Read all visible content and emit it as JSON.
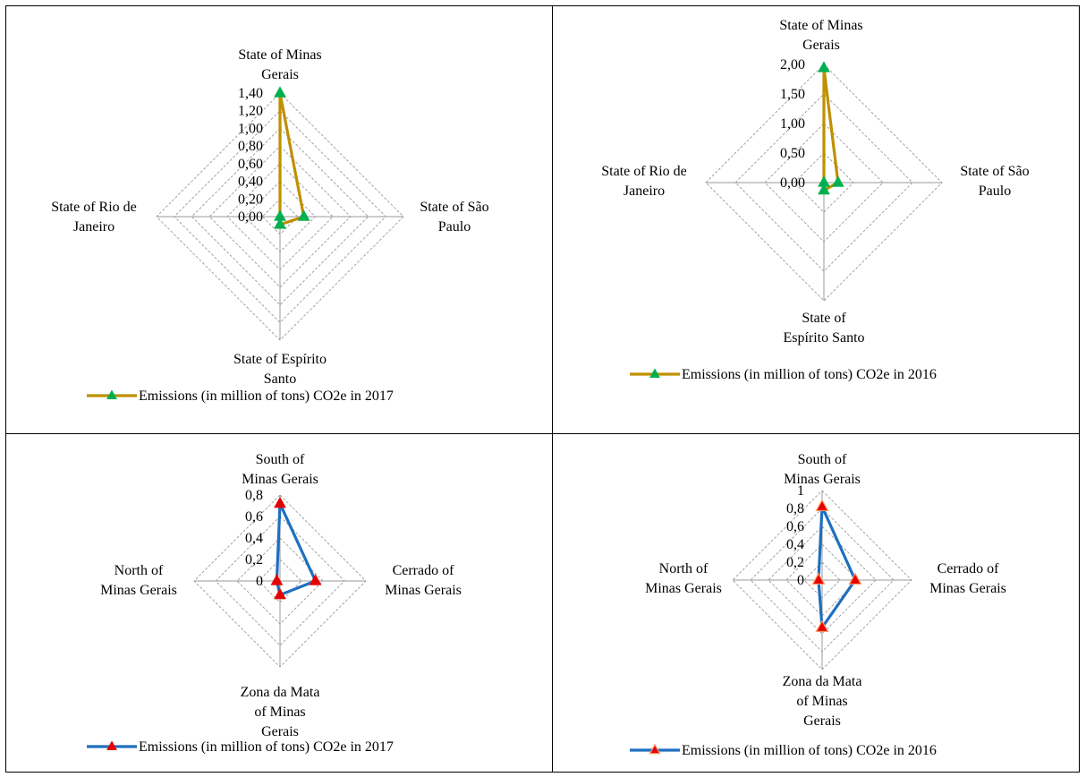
{
  "chart_data": [
    {
      "type": "radar",
      "categories": [
        [
          "State of Minas",
          "Gerais"
        ],
        [
          "State of São",
          "Paulo"
        ],
        [
          "State of Espírito",
          "Santo"
        ],
        [
          "State of Rio de",
          "Janeiro"
        ]
      ],
      "tick_labels": [
        "0,00",
        "0,20",
        "0,40",
        "0,60",
        "0,80",
        "1,00",
        "1,20",
        "1,40"
      ],
      "rmax": 1.4,
      "series": [
        {
          "name": "Emissions (in million of tons) CO2e in 2017",
          "values": [
            1.4,
            0.27,
            0.09,
            0.0
          ]
        }
      ],
      "line_color": "#bf9000",
      "marker_color": "#00b050",
      "grid": true
    },
    {
      "type": "radar",
      "categories": [
        [
          "State of Minas",
          "Gerais"
        ],
        [
          "State of São",
          "Paulo"
        ],
        [
          "State of",
          "Espírito Santo"
        ],
        [
          "State of Rio de",
          "Janeiro"
        ]
      ],
      "tick_labels": [
        "0,00",
        "0,50",
        "1,00",
        "1,50",
        "2,00"
      ],
      "rmax": 2.0,
      "series": [
        {
          "name": "Emissions (in million of tons) CO2e in 2016",
          "values": [
            1.94,
            0.24,
            0.13,
            0.0
          ]
        }
      ],
      "line_color": "#bf9000",
      "marker_color": "#00b050",
      "grid": true
    },
    {
      "type": "radar",
      "categories": [
        [
          "South of",
          "Minas Gerais"
        ],
        [
          "Cerrado of",
          "Minas Gerais"
        ],
        [
          "Zona da Mata",
          "of Minas",
          "Gerais"
        ],
        [
          "North of",
          "Minas Gerais"
        ]
      ],
      "tick_labels": [
        "0",
        "0,2",
        "0,4",
        "0,6",
        "0,8"
      ],
      "rmax": 0.8,
      "series": [
        {
          "name": "Emissions (in million of tons) CO2e in 2017",
          "values": [
            0.72,
            0.33,
            0.13,
            0.03
          ]
        }
      ],
      "line_color": "#1f6fbf",
      "marker_color": "#e60000",
      "grid": true
    },
    {
      "type": "radar",
      "categories": [
        [
          "South of",
          "Minas Gerais"
        ],
        [
          "Cerrado of",
          "Minas Gerais"
        ],
        [
          "Zona da Mata",
          "of Minas",
          "Gerais"
        ],
        [
          "North of",
          "Minas Gerais"
        ]
      ],
      "tick_labels": [
        "0",
        "0,2",
        "0,4",
        "0,6",
        "0,8",
        "1"
      ],
      "rmax": 1.0,
      "series": [
        {
          "name": "Emissions (in million of tons) CO2e in 2016",
          "values": [
            0.82,
            0.37,
            0.53,
            0.04
          ]
        }
      ],
      "line_color": "#1f6fbf",
      "marker_color": "#e60000",
      "marker_stroke": "#ff9966",
      "grid": true
    }
  ]
}
